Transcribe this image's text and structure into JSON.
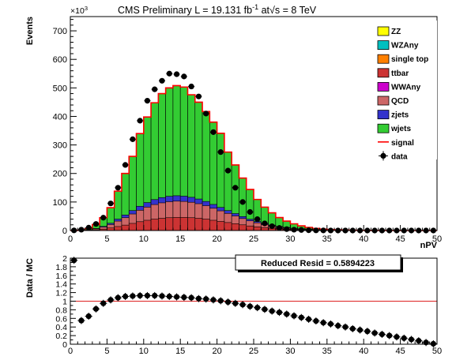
{
  "chart_data": [
    {
      "type": "bar",
      "title": "CMS Preliminary L = 19.131 fb",
      "title_superscript": "-1",
      "title_suffix": " at",
      "sqrt_symbol": "√",
      "sqrt_arg": "s",
      "energy_text": " = 8 TeV",
      "xlabel": "nPV",
      "ylabel": "Events",
      "y_multiplier": "×10",
      "y_multiplier_exp": "3",
      "xlim": [
        0,
        50
      ],
      "ylim": [
        0,
        750
      ],
      "x_ticks": [
        0,
        5,
        10,
        15,
        20,
        25,
        30,
        35,
        40,
        45,
        50
      ],
      "y_ticks": [
        0,
        100,
        200,
        300,
        400,
        500,
        600,
        700
      ],
      "bin_width": 1,
      "grid": false,
      "legend_position": "top-right",
      "legend": [
        {
          "label": "ZZ",
          "color": "#ffff00",
          "kind": "fill"
        },
        {
          "label": "WZAny",
          "color": "#00c0c0",
          "kind": "fill"
        },
        {
          "label": "single top",
          "color": "#ff8000",
          "kind": "fill"
        },
        {
          "label": "ttbar",
          "color": "#cc3333",
          "kind": "fill"
        },
        {
          "label": "WWAny",
          "color": "#cc00cc",
          "kind": "fill"
        },
        {
          "label": "QCD",
          "color": "#cc6666",
          "kind": "fill"
        },
        {
          "label": "zjets",
          "color": "#3333cc",
          "kind": "fill"
        },
        {
          "label": "wjets",
          "color": "#33cc33",
          "kind": "fill"
        },
        {
          "label": "signal",
          "color": "#ff0000",
          "kind": "line"
        },
        {
          "label": "data",
          "color": "#000000",
          "kind": "marker"
        }
      ],
      "series": [
        {
          "name": "ttbar",
          "color": "#cc3333",
          "values": [
            0,
            0.2,
            0.8,
            2.5,
            5,
            9,
            14,
            19,
            25,
            31,
            36,
            40,
            43,
            45,
            46,
            46,
            45,
            43,
            40,
            36,
            32,
            28,
            24,
            20,
            16,
            13,
            10,
            8,
            6,
            4.5,
            3.3,
            2.4,
            1.7,
            1.2,
            0.8,
            0.6,
            0.4,
            0.3,
            0.2,
            0.1,
            0.1,
            0.05,
            0.03,
            0.02,
            0,
            0,
            0,
            0,
            0,
            0
          ]
        },
        {
          "name": "QCD",
          "color": "#cc6666",
          "values": [
            0,
            0.3,
            1.2,
            3.5,
            7,
            12,
            19,
            26,
            33,
            40,
            46,
            51,
            54,
            56,
            57,
            56,
            54,
            51,
            47,
            42,
            37,
            32,
            27,
            22,
            18,
            14,
            11,
            8.5,
            6.5,
            5,
            3.7,
            2.7,
            1.9,
            1.3,
            0.9,
            0.6,
            0.4,
            0.3,
            0.2,
            0.1,
            0.1,
            0.05,
            0.03,
            0.02,
            0,
            0,
            0,
            0,
            0,
            0
          ]
        },
        {
          "name": "zjets",
          "color": "#3333cc",
          "values": [
            0,
            0.1,
            0.4,
            1.2,
            2.5,
            4.5,
            7,
            9.5,
            12,
            14,
            16,
            17.5,
            18.5,
            19,
            19,
            18.5,
            17.5,
            16.5,
            15,
            13.5,
            12,
            10,
            8.5,
            7,
            5.5,
            4.3,
            3.3,
            2.5,
            1.9,
            1.4,
            1,
            0.7,
            0.5,
            0.35,
            0.25,
            0.15,
            0.1,
            0.08,
            0.05,
            0.03,
            0.02,
            0.01,
            0,
            0,
            0,
            0,
            0,
            0,
            0,
            0
          ]
        },
        {
          "name": "wjets",
          "color": "#33cc33",
          "values": [
            0,
            1,
            5,
            14,
            30,
            55,
            98,
            145,
            190,
            255,
            300,
            340,
            365,
            380,
            386,
            383,
            360,
            340,
            315,
            288,
            260,
            205,
            170,
            135,
            104,
            78,
            58,
            43,
            31,
            22,
            15.5,
            10.5,
            7,
            4.7,
            3.1,
            2,
            1.3,
            0.8,
            0.5,
            0.3,
            0.2,
            0.12,
            0.07,
            0.04,
            0.02,
            0.01,
            0,
            0,
            0,
            0
          ]
        },
        {
          "name": "signal",
          "color": "#ff0000",
          "kind": "line",
          "values": [
            0,
            1.6,
            7.5,
            21,
            45,
            80,
            138,
            200,
            260,
            340,
            398,
            448,
            480,
            500,
            508,
            503,
            476,
            450,
            417,
            380,
            341,
            275,
            230,
            184,
            144,
            109,
            82,
            62,
            45.4,
            32.9,
            23.5,
            16.3,
            11.1,
            7.55,
            5.05,
            3.35,
            2.2,
            1.48,
            0.95,
            0.53,
            0.42,
            0.23,
            0.13,
            0.08,
            0.02,
            0.01,
            0,
            0,
            0,
            0
          ]
        },
        {
          "name": "data",
          "color": "#000000",
          "kind": "points",
          "values": [
            0.5,
            3,
            10,
            23,
            45,
            95,
            150,
            230,
            320,
            385,
            455,
            495,
            525,
            550,
            548,
            540,
            505,
            470,
            410,
            345,
            275,
            210,
            150,
            100,
            65,
            40,
            25,
            15,
            9,
            5,
            3,
            2,
            1,
            0.5,
            0.3,
            0.2,
            0.1,
            0.05,
            0.02,
            0.01,
            0,
            0,
            0,
            0,
            0,
            0,
            0,
            0,
            0,
            0
          ]
        }
      ]
    },
    {
      "type": "scatter",
      "ylabel": "Data / MC",
      "xlim": [
        0,
        50
      ],
      "ylim": [
        0,
        2
      ],
      "x_ticks": [
        0,
        5,
        10,
        15,
        20,
        25,
        30,
        35,
        40,
        45,
        50
      ],
      "y_ticks": [
        0,
        0.2,
        0.4,
        0.6,
        0.8,
        1,
        1.2,
        1.4,
        1.6,
        1.8,
        2
      ],
      "reference_line": 1,
      "annotation": "Reduced Resid = 0.5894223",
      "series": [
        {
          "name": "Data / MC",
          "color": "#000000",
          "x": [
            0.5,
            1.5,
            2.5,
            3.5,
            4.5,
            5.5,
            6.5,
            7.5,
            8.5,
            9.5,
            10.5,
            11.5,
            12.5,
            13.5,
            14.5,
            15.5,
            16.5,
            17.5,
            18.5,
            19.5,
            20.5,
            21.5,
            22.5,
            23.5,
            24.5,
            25.5,
            26.5,
            27.5,
            28.5,
            29.5,
            30.5,
            31.5,
            32.5,
            33.5,
            34.5,
            35.5,
            36.5,
            37.5,
            38.5,
            39.5,
            40.5,
            41.5,
            42.5,
            43.5,
            44.5,
            45.5,
            46.5,
            47.5,
            48.5,
            49.5
          ],
          "values": [
            1.95,
            0.55,
            0.65,
            0.82,
            0.95,
            1.03,
            1.08,
            1.11,
            1.12,
            1.13,
            1.13,
            1.13,
            1.12,
            1.11,
            1.1,
            1.09,
            1.08,
            1.06,
            1.05,
            1.03,
            1.01,
            0.98,
            0.95,
            0.92,
            0.88,
            0.85,
            0.81,
            0.77,
            0.74,
            0.7,
            0.66,
            0.62,
            0.58,
            0.54,
            0.5,
            0.47,
            0.43,
            0.4,
            0.36,
            0.33,
            0.3,
            0.26,
            0.23,
            0.2,
            0.17,
            0.14,
            0.11,
            0.08,
            0.04,
            0.01
          ]
        }
      ]
    }
  ]
}
